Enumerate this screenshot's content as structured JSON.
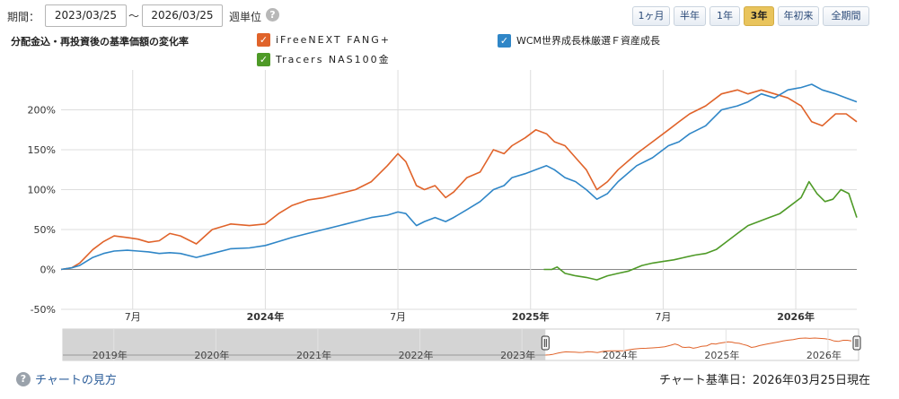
{
  "header": {
    "period_label": "期間：",
    "start_date": "2023/03/25",
    "tilde": "〜",
    "end_date": "2026/03/25",
    "unit_label": "週単位",
    "help_icon_glyph": "?"
  },
  "range_buttons": [
    {
      "label": "1ヶ月",
      "active": false
    },
    {
      "label": "半年",
      "active": false
    },
    {
      "label": "1年",
      "active": false
    },
    {
      "label": "3年",
      "active": true
    },
    {
      "label": "年初来",
      "active": false
    },
    {
      "label": "全期間",
      "active": false
    }
  ],
  "chart_title": "分配金込・再投資後の基準価額の変化率",
  "legend": [
    {
      "name": "iFreeNEXT FANG+",
      "color": "#e0632a",
      "check": "✓"
    },
    {
      "name": "WCM世界成長株厳選Ｆ資産成長",
      "color": "#2f86c7",
      "check": "✓"
    },
    {
      "name": "Tracers NAS100金",
      "color": "#4e9a27",
      "check": "✓"
    }
  ],
  "colors": {
    "grid": "#dddddd",
    "zero_line": "#888888",
    "axis_text": "#333333"
  },
  "chart_data": {
    "type": "line",
    "x_unit": "year",
    "xlim": [
      2023.23,
      2026.23
    ],
    "ylim": [
      -50,
      260
    ],
    "yticks": [
      -50,
      0,
      50,
      100,
      150,
      200
    ],
    "ytick_labels": [
      "-50%",
      "0%",
      "50%",
      "100%",
      "150%",
      "200%"
    ],
    "xticks": [
      {
        "x": 2023.5,
        "label": "7月",
        "bold": false
      },
      {
        "x": 2024.0,
        "label": "2024年",
        "bold": true
      },
      {
        "x": 2024.5,
        "label": "7月",
        "bold": false
      },
      {
        "x": 2025.0,
        "label": "2025年",
        "bold": true
      },
      {
        "x": 2025.5,
        "label": "7月",
        "bold": false
      },
      {
        "x": 2026.0,
        "label": "2026年",
        "bold": true
      }
    ],
    "grid": true,
    "series": [
      {
        "name": "iFreeNEXT FANG+",
        "color": "#e0632a",
        "points": [
          [
            2023.23,
            0
          ],
          [
            2023.27,
            2
          ],
          [
            2023.3,
            8
          ],
          [
            2023.35,
            25
          ],
          [
            2023.39,
            35
          ],
          [
            2023.43,
            42
          ],
          [
            2023.48,
            40
          ],
          [
            2023.52,
            38
          ],
          [
            2023.56,
            34
          ],
          [
            2023.6,
            36
          ],
          [
            2023.64,
            45
          ],
          [
            2023.68,
            42
          ],
          [
            2023.74,
            32
          ],
          [
            2023.8,
            50
          ],
          [
            2023.87,
            57
          ],
          [
            2023.94,
            55
          ],
          [
            2024.0,
            57
          ],
          [
            2024.05,
            70
          ],
          [
            2024.1,
            80
          ],
          [
            2024.16,
            87
          ],
          [
            2024.22,
            90
          ],
          [
            2024.28,
            95
          ],
          [
            2024.34,
            100
          ],
          [
            2024.4,
            110
          ],
          [
            2024.46,
            130
          ],
          [
            2024.5,
            145
          ],
          [
            2024.53,
            135
          ],
          [
            2024.57,
            105
          ],
          [
            2024.6,
            100
          ],
          [
            2024.64,
            105
          ],
          [
            2024.68,
            90
          ],
          [
            2024.71,
            97
          ],
          [
            2024.76,
            115
          ],
          [
            2024.81,
            122
          ],
          [
            2024.86,
            150
          ],
          [
            2024.9,
            145
          ],
          [
            2024.93,
            155
          ],
          [
            2024.98,
            165
          ],
          [
            2025.02,
            175
          ],
          [
            2025.06,
            170
          ],
          [
            2025.09,
            160
          ],
          [
            2025.13,
            155
          ],
          [
            2025.17,
            140
          ],
          [
            2025.21,
            125
          ],
          [
            2025.25,
            100
          ],
          [
            2025.29,
            110
          ],
          [
            2025.33,
            125
          ],
          [
            2025.4,
            145
          ],
          [
            2025.46,
            160
          ],
          [
            2025.52,
            175
          ],
          [
            2025.56,
            185
          ],
          [
            2025.6,
            195
          ],
          [
            2025.66,
            205
          ],
          [
            2025.72,
            220
          ],
          [
            2025.78,
            225
          ],
          [
            2025.82,
            220
          ],
          [
            2025.87,
            225
          ],
          [
            2025.92,
            220
          ],
          [
            2025.97,
            215
          ],
          [
            2026.02,
            205
          ],
          [
            2026.06,
            185
          ],
          [
            2026.1,
            180
          ],
          [
            2026.15,
            195
          ],
          [
            2026.19,
            195
          ],
          [
            2026.23,
            185
          ]
        ]
      },
      {
        "name": "WCM世界成長株厳選Ｆ資産成長",
        "color": "#2f86c7",
        "points": [
          [
            2023.23,
            0
          ],
          [
            2023.27,
            2
          ],
          [
            2023.3,
            5
          ],
          [
            2023.35,
            15
          ],
          [
            2023.39,
            20
          ],
          [
            2023.43,
            23
          ],
          [
            2023.48,
            24
          ],
          [
            2023.52,
            23
          ],
          [
            2023.56,
            22
          ],
          [
            2023.6,
            20
          ],
          [
            2023.64,
            21
          ],
          [
            2023.68,
            20
          ],
          [
            2023.74,
            15
          ],
          [
            2023.8,
            20
          ],
          [
            2023.87,
            26
          ],
          [
            2023.94,
            27
          ],
          [
            2024.0,
            30
          ],
          [
            2024.05,
            35
          ],
          [
            2024.1,
            40
          ],
          [
            2024.16,
            45
          ],
          [
            2024.22,
            50
          ],
          [
            2024.28,
            55
          ],
          [
            2024.34,
            60
          ],
          [
            2024.4,
            65
          ],
          [
            2024.46,
            68
          ],
          [
            2024.5,
            72
          ],
          [
            2024.53,
            70
          ],
          [
            2024.57,
            55
          ],
          [
            2024.6,
            60
          ],
          [
            2024.64,
            65
          ],
          [
            2024.68,
            60
          ],
          [
            2024.71,
            65
          ],
          [
            2024.76,
            75
          ],
          [
            2024.81,
            85
          ],
          [
            2024.86,
            100
          ],
          [
            2024.9,
            105
          ],
          [
            2024.93,
            115
          ],
          [
            2024.98,
            120
          ],
          [
            2025.02,
            125
          ],
          [
            2025.06,
            130
          ],
          [
            2025.09,
            125
          ],
          [
            2025.13,
            115
          ],
          [
            2025.17,
            110
          ],
          [
            2025.21,
            100
          ],
          [
            2025.25,
            88
          ],
          [
            2025.29,
            95
          ],
          [
            2025.33,
            110
          ],
          [
            2025.4,
            130
          ],
          [
            2025.46,
            140
          ],
          [
            2025.52,
            155
          ],
          [
            2025.56,
            160
          ],
          [
            2025.6,
            170
          ],
          [
            2025.66,
            180
          ],
          [
            2025.72,
            200
          ],
          [
            2025.78,
            205
          ],
          [
            2025.82,
            210
          ],
          [
            2025.87,
            220
          ],
          [
            2025.92,
            215
          ],
          [
            2025.97,
            225
          ],
          [
            2026.02,
            228
          ],
          [
            2026.06,
            232
          ],
          [
            2026.1,
            225
          ],
          [
            2026.15,
            220
          ],
          [
            2026.19,
            215
          ],
          [
            2026.23,
            210
          ]
        ]
      },
      {
        "name": "Tracers NAS100金",
        "color": "#4e9a27",
        "points": [
          [
            2025.05,
            0
          ],
          [
            2025.08,
            0
          ],
          [
            2025.1,
            3
          ],
          [
            2025.13,
            -5
          ],
          [
            2025.17,
            -8
          ],
          [
            2025.21,
            -10
          ],
          [
            2025.25,
            -13
          ],
          [
            2025.29,
            -8
          ],
          [
            2025.33,
            -5
          ],
          [
            2025.37,
            -2
          ],
          [
            2025.42,
            5
          ],
          [
            2025.46,
            8
          ],
          [
            2025.5,
            10
          ],
          [
            2025.54,
            12
          ],
          [
            2025.58,
            15
          ],
          [
            2025.62,
            18
          ],
          [
            2025.66,
            20
          ],
          [
            2025.7,
            25
          ],
          [
            2025.74,
            35
          ],
          [
            2025.78,
            45
          ],
          [
            2025.82,
            55
          ],
          [
            2025.86,
            60
          ],
          [
            2025.9,
            65
          ],
          [
            2025.94,
            70
          ],
          [
            2025.98,
            80
          ],
          [
            2026.02,
            90
          ],
          [
            2026.05,
            110
          ],
          [
            2026.08,
            95
          ],
          [
            2026.11,
            85
          ],
          [
            2026.14,
            88
          ],
          [
            2026.17,
            100
          ],
          [
            2026.2,
            95
          ],
          [
            2026.23,
            65
          ]
        ]
      }
    ]
  },
  "navigator": {
    "year_labels": [
      "2019年",
      "2020年",
      "2021年",
      "2022年",
      "2023年",
      "2024年",
      "2025年",
      "2026年"
    ],
    "colors": {
      "shade": "#d4d4d4",
      "line_inactive": "#999999",
      "line_active": "#e0632a",
      "handle_fill": "#f4f4f4",
      "handle_stroke": "#333333"
    }
  },
  "footer": {
    "help_link": "チャートの見方",
    "reference_date": "チャート基準日：2026年03月25日現在"
  }
}
